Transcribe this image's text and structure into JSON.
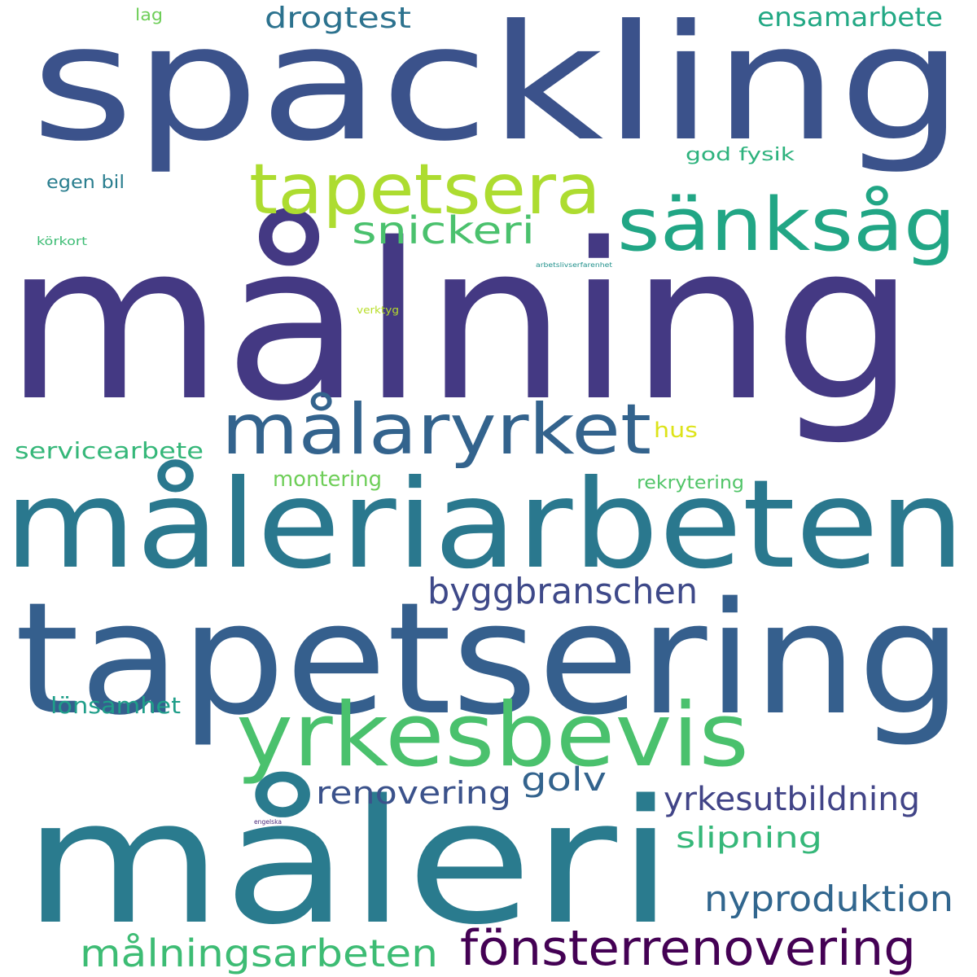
{
  "cloud": {
    "words": [
      {
        "key": "malning",
        "text": "målning",
        "color": "#443983"
      },
      {
        "key": "spackling",
        "text": "spackling",
        "color": "#3b528b"
      },
      {
        "key": "tapetsering",
        "text": "tapetsering",
        "color": "#355f8d"
      },
      {
        "key": "maleriarbeten",
        "text": "måleriarbeten",
        "color": "#2a788e"
      },
      {
        "key": "maleri",
        "text": "måleri",
        "color": "#2a7b8e"
      },
      {
        "key": "yrkesbevis",
        "text": "yrkesbevis",
        "color": "#4ac16d"
      },
      {
        "key": "malaryrket",
        "text": "målaryrket",
        "color": "#33638d"
      },
      {
        "key": "tapetsera",
        "text": "tapetsera",
        "color": "#addc30"
      },
      {
        "key": "sanksag",
        "text": "sänksåg",
        "color": "#21a685"
      },
      {
        "key": "fonsterrenovering",
        "text": "fönsterrenovering",
        "color": "#440154"
      },
      {
        "key": "malningsarbeten",
        "text": "målningsarbeten",
        "color": "#3dbc74"
      },
      {
        "key": "nyproduktion",
        "text": "nyproduktion",
        "color": "#31668e"
      },
      {
        "key": "byggbranschen",
        "text": "byggbranschen",
        "color": "#3e4989"
      },
      {
        "key": "snickeri",
        "text": "snickeri",
        "color": "#4ac16d"
      },
      {
        "key": "renovering",
        "text": "renovering",
        "color": "#3b528b"
      },
      {
        "key": "golv",
        "text": "golv",
        "color": "#33638d"
      },
      {
        "key": "yrkesutbildning",
        "text": "yrkesutbildning",
        "color": "#414487"
      },
      {
        "key": "slipning",
        "text": "slipning",
        "color": "#35b779"
      },
      {
        "key": "drogtest",
        "text": "drogtest",
        "color": "#2c728e"
      },
      {
        "key": "ensamarbete",
        "text": "ensamarbete",
        "color": "#22a884"
      },
      {
        "key": "servicearbete",
        "text": "servicearbete",
        "color": "#35b779"
      },
      {
        "key": "lonsamhet",
        "text": "lönsamhet",
        "color": "#1f9e89"
      },
      {
        "key": "hus",
        "text": "hus",
        "color": "#dde318"
      },
      {
        "key": "montering",
        "text": "montering",
        "color": "#6ece58"
      },
      {
        "key": "rekrytering",
        "text": "rekrytering",
        "color": "#52c569"
      },
      {
        "key": "god_fysik",
        "text": "god fysik",
        "color": "#2db27d"
      },
      {
        "key": "egen_bil",
        "text": "egen bil",
        "color": "#287d8e"
      },
      {
        "key": "lag",
        "text": "lag",
        "color": "#6ece58"
      },
      {
        "key": "korkort",
        "text": "körkort",
        "color": "#3dbc74"
      },
      {
        "key": "arbetslivserfarenhet",
        "text": "arbetslivserfarenhet",
        "color": "#21918c"
      },
      {
        "key": "verktyg",
        "text": "verktyg",
        "color": "#b8de29"
      },
      {
        "key": "engelska",
        "text": "engelska",
        "color": "#482878"
      }
    ]
  }
}
